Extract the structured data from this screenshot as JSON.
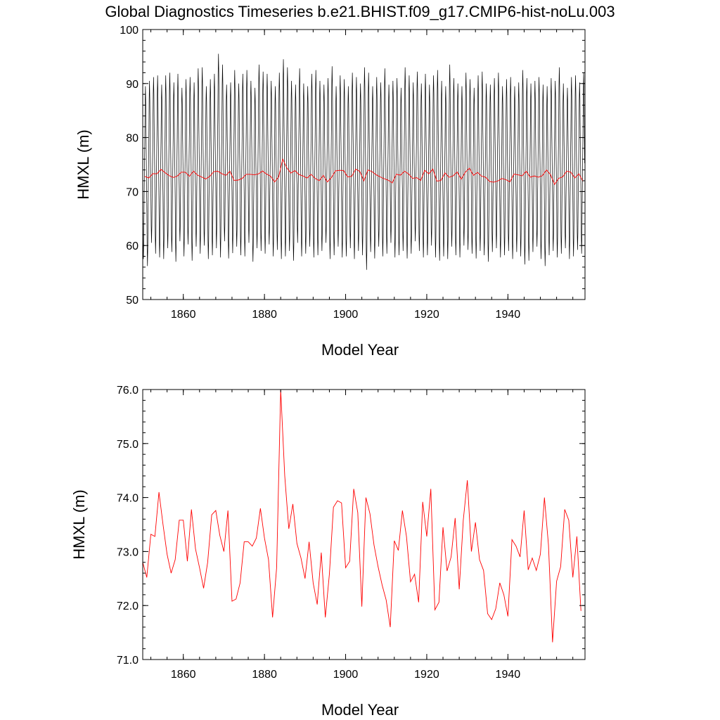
{
  "title": "Global Diagnostics Timeseries b.e21.BHIST.f09_g17.CMIP6-hist-noLu.003",
  "colors": {
    "monthly": "#000000",
    "annual": "#ff0000"
  },
  "chart_data": [
    {
      "type": "line",
      "xlabel": "Model Year",
      "ylabel": "HMXL (m)",
      "xlim": [
        1850,
        1959
      ],
      "ylim": [
        50,
        100
      ],
      "xticks": [
        1860,
        1880,
        1900,
        1920,
        1940
      ],
      "yticks": [
        50,
        60,
        70,
        80,
        90,
        100
      ],
      "ytick_labels": [
        "50",
        "60",
        "70",
        "80",
        "90",
        "100"
      ],
      "grid": false,
      "series": [
        {
          "color": "#000000",
          "sampling": "monthly, 12 values per year starting at 1850.0",
          "annual_min": [
            57.5,
            56.2,
            60.5,
            58.5,
            57.8,
            57.5,
            59.5,
            58.8,
            57.0,
            60.8,
            58.0,
            60.2,
            57.2,
            59.8,
            58.5,
            60.0,
            57.5,
            58.2,
            59.5,
            57.8,
            60.8,
            57.6,
            58.6,
            59.8,
            58.2,
            58.0,
            60.5,
            57.0,
            59.5,
            59.0,
            58.5,
            60.2,
            58.0,
            59.2,
            57.5,
            58.0,
            59.0,
            57.2,
            60.5,
            58.0,
            58.5,
            59.8,
            57.8,
            58.2,
            59.0,
            60.5,
            57.5,
            58.2,
            59.8,
            57.8,
            58.0,
            59.5,
            57.5,
            59.0,
            58.2,
            55.5,
            58.8,
            57.6,
            59.8,
            58.0,
            58.5,
            60.5,
            57.8,
            58.2,
            59.0,
            57.6,
            58.5,
            60.8,
            59.0,
            57.8,
            58.2,
            60.0,
            57.8,
            57.2,
            58.0,
            57.5,
            59.8,
            58.2,
            57.8,
            60.0,
            59.2,
            58.5,
            57.6,
            59.0,
            58.2,
            57.0,
            58.8,
            59.5,
            57.8,
            58.2,
            59.0,
            57.5,
            58.8,
            58.0,
            56.5,
            57.2,
            58.8,
            59.8,
            57.5,
            56.2,
            58.2,
            59.0,
            57.8,
            58.5,
            59.5,
            57.5,
            58.0,
            59.2,
            58.5
          ],
          "annual_max": [
            89.5,
            90.5,
            91.2,
            91.5,
            89.8,
            91.5,
            92.0,
            90.2,
            91.8,
            89.2,
            90.8,
            91.2,
            90.2,
            92.8,
            93.0,
            89.5,
            90.8,
            91.8,
            95.5,
            93.5,
            89.8,
            90.2,
            92.5,
            90.0,
            91.8,
            92.5,
            90.5,
            89.2,
            93.5,
            92.2,
            91.8,
            90.5,
            89.5,
            92.0,
            94.5,
            93.0,
            90.5,
            89.8,
            92.8,
            90.0,
            89.5,
            91.8,
            92.5,
            90.5,
            89.8,
            91.0,
            93.2,
            89.5,
            91.5,
            90.8,
            89.5,
            92.0,
            91.2,
            90.0,
            93.0,
            92.0,
            89.5,
            91.2,
            90.2,
            92.8,
            89.8,
            90.5,
            91.0,
            89.2,
            93.0,
            91.5,
            90.2,
            92.2,
            90.0,
            91.8,
            89.8,
            91.5,
            92.5,
            90.5,
            89.5,
            93.5,
            91.0,
            90.0,
            89.5,
            92.0,
            90.8,
            89.2,
            91.5,
            92.2,
            90.0,
            89.8,
            91.0,
            92.0,
            89.5,
            90.8,
            91.2,
            89.5,
            90.2,
            92.5,
            91.0,
            90.0,
            90.5,
            91.2,
            89.8,
            89.5,
            91.0,
            90.5,
            93.0,
            90.0,
            89.2,
            91.2,
            91.5,
            90.2,
            92.0
          ]
        },
        {
          "color": "#ff0000",
          "sampling": "annual mean (same as lower panel)"
        }
      ]
    },
    {
      "type": "line",
      "xlabel": "Model Year",
      "ylabel": "HMXL (m)",
      "xlim": [
        1850,
        1959
      ],
      "ylim": [
        71.0,
        76.0
      ],
      "xticks": [
        1860,
        1880,
        1900,
        1920,
        1940
      ],
      "yticks": [
        71.0,
        72.0,
        73.0,
        74.0,
        75.0,
        76.0
      ],
      "ytick_labels": [
        "71.0",
        "72.0",
        "73.0",
        "74.0",
        "75.0",
        "76.0"
      ],
      "grid": false,
      "series": [
        {
          "color": "#ff0000",
          "x_start": 1850,
          "x_step": 1,
          "values": [
            72.8,
            72.52,
            73.32,
            73.28,
            74.1,
            73.5,
            72.95,
            72.6,
            72.85,
            73.58,
            73.58,
            72.82,
            73.78,
            73.05,
            72.7,
            72.32,
            72.8,
            73.68,
            73.76,
            73.3,
            73.0,
            73.76,
            72.08,
            72.12,
            72.42,
            73.18,
            73.18,
            73.1,
            73.25,
            73.8,
            73.25,
            72.85,
            71.78,
            72.7,
            76.0,
            74.4,
            73.42,
            73.88,
            73.15,
            72.88,
            72.5,
            73.18,
            72.42,
            72.02,
            72.98,
            71.78,
            72.58,
            73.82,
            73.94,
            73.9,
            72.7,
            72.82,
            74.16,
            73.72,
            71.98,
            74.0,
            73.7,
            73.12,
            72.72,
            72.38,
            72.1,
            71.6,
            73.2,
            73.02,
            73.76,
            73.28,
            72.44,
            72.58,
            72.06,
            73.92,
            73.28,
            74.16,
            71.92,
            72.06,
            73.45,
            72.64,
            72.9,
            73.62,
            72.3,
            73.58,
            74.32,
            73.0,
            73.54,
            72.85,
            72.65,
            71.85,
            71.74,
            71.94,
            72.42,
            72.2,
            71.8,
            73.22,
            73.1,
            72.9,
            73.76,
            72.66,
            72.88,
            72.65,
            72.95,
            74.0,
            73.12,
            71.32,
            72.45,
            72.72,
            73.78,
            73.58,
            72.52,
            73.28,
            71.9
          ]
        }
      ]
    }
  ]
}
